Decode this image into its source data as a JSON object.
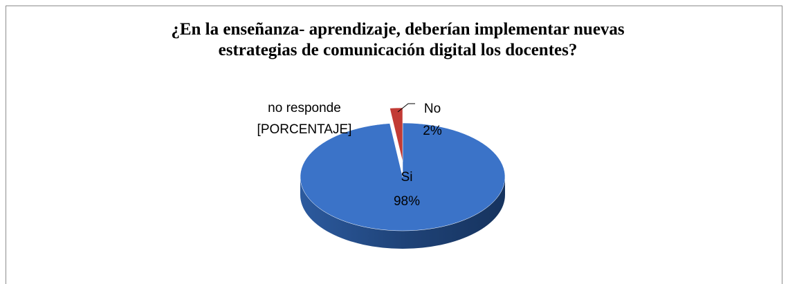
{
  "chart_data": {
    "type": "pie",
    "title": [
      "¿En la enseñanza- aprendizaje, deberían implementar nuevas",
      "estrategias de comunicación digital los docentes?"
    ],
    "categories": [
      "Si",
      "No",
      "no responde"
    ],
    "values": [
      98,
      2,
      0
    ],
    "value_labels": [
      "98%",
      "2%",
      "[PORCENTAJE]"
    ],
    "colors": [
      "#3b73c8",
      "#c23b35",
      "#8bb04a"
    ]
  }
}
